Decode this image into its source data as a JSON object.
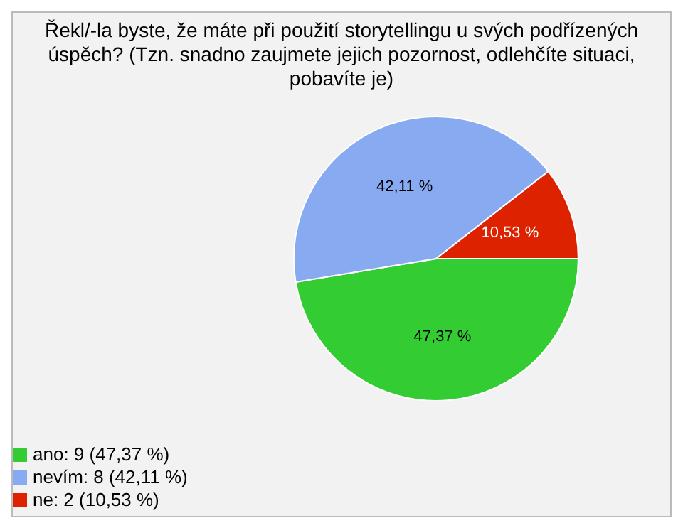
{
  "chart_data": {
    "type": "pie",
    "title": "Řekl/-la byste, že máte při použití storytellingu u svých podřízených úspěch? (Tzn. snadno zaujmete jejich pozornost, odlehčíte situaci, pobavíte je)",
    "categories": [
      "ano: 9 (47,37 %)",
      "nevím: 8 (42,11 %)",
      "ne: 2 (10,53 %)"
    ],
    "values": [
      47.37,
      42.11,
      10.53
    ],
    "value_labels": [
      "47,37 %",
      "42,11 %",
      "10,53 %"
    ],
    "colors": [
      "#33cc33",
      "#88aaf0",
      "#dd2200"
    ],
    "legend": "bottom left"
  }
}
